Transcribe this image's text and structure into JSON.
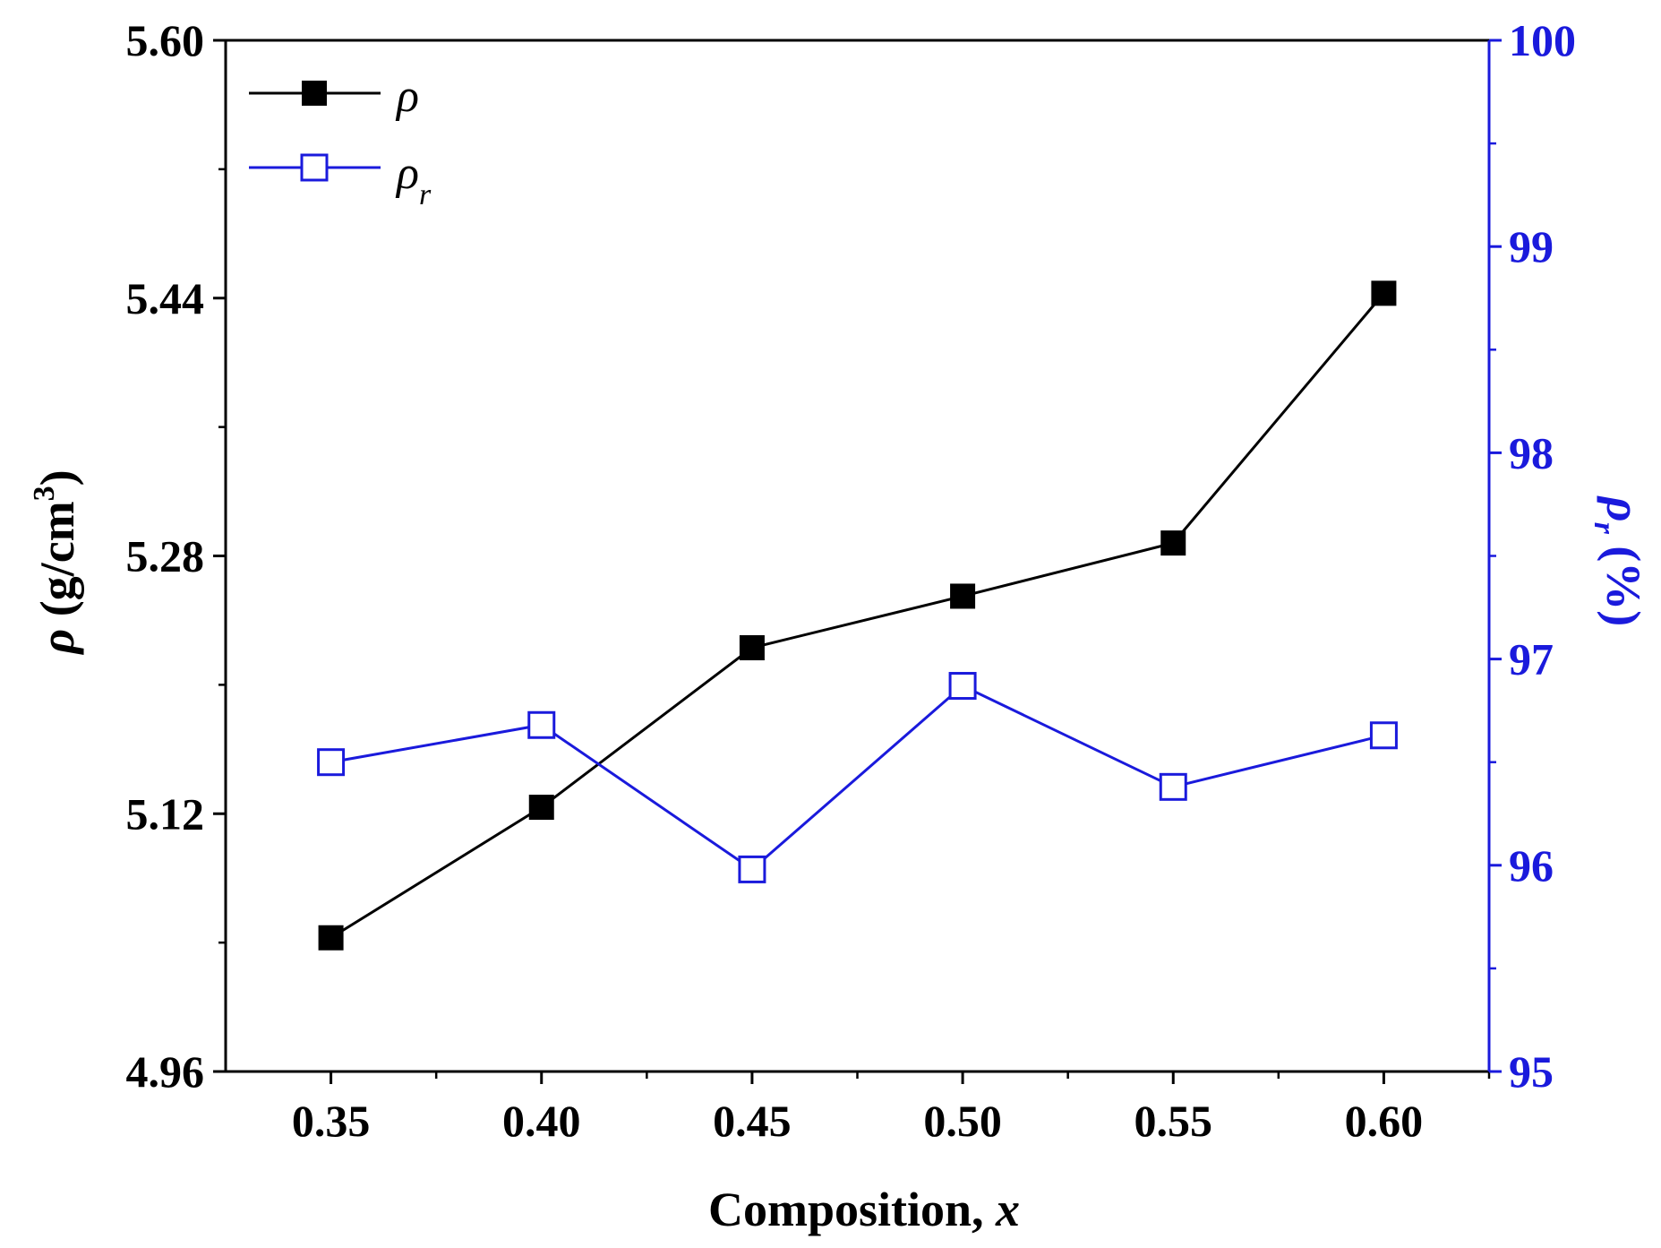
{
  "chart_data": {
    "type": "line",
    "title": "",
    "xlabel": "Composition, x",
    "xlabel_main": "Composition, ",
    "xlabel_var": "x",
    "ylabel_left_symbol": "ρ",
    "ylabel_left_unit": " (g/cm",
    "ylabel_left_sup": "3",
    "ylabel_left_close": ")",
    "ylabel_right_symbol": "ρ",
    "ylabel_right_sub": "r",
    "ylabel_right_unit": " (%)",
    "xlim": [
      0.325,
      0.625
    ],
    "ylim_left": [
      4.96,
      5.6
    ],
    "ylim_right": [
      95,
      100
    ],
    "x": [
      0.35,
      0.4,
      0.45,
      0.5,
      0.55,
      0.6
    ],
    "x_tick_labels": [
      "0.35",
      "0.40",
      "0.45",
      "0.50",
      "0.55",
      "0.60"
    ],
    "y_left_ticks": [
      4.96,
      5.12,
      5.28,
      5.44,
      5.6
    ],
    "y_left_tick_labels": [
      "4.96",
      "5.12",
      "5.28",
      "5.44",
      "5.60"
    ],
    "y_right_ticks": [
      95,
      96,
      97,
      98,
      99,
      100
    ],
    "y_right_tick_labels": [
      "95",
      "96",
      "97",
      "98",
      "99",
      "100"
    ],
    "legend_position": "top-left",
    "series": [
      {
        "name": "ρ",
        "legend_symbol": "ρ",
        "legend_sub": "",
        "axis": "left",
        "marker": "filled-square",
        "color": "#000000",
        "values": [
          5.043,
          5.124,
          5.223,
          5.255,
          5.288,
          5.443
        ]
      },
      {
        "name": "ρr",
        "legend_symbol": "ρ",
        "legend_sub": "r",
        "axis": "right",
        "marker": "open-square",
        "color": "#1a1adc",
        "values": [
          96.5,
          96.68,
          95.98,
          96.87,
          96.38,
          96.63
        ]
      }
    ]
  }
}
